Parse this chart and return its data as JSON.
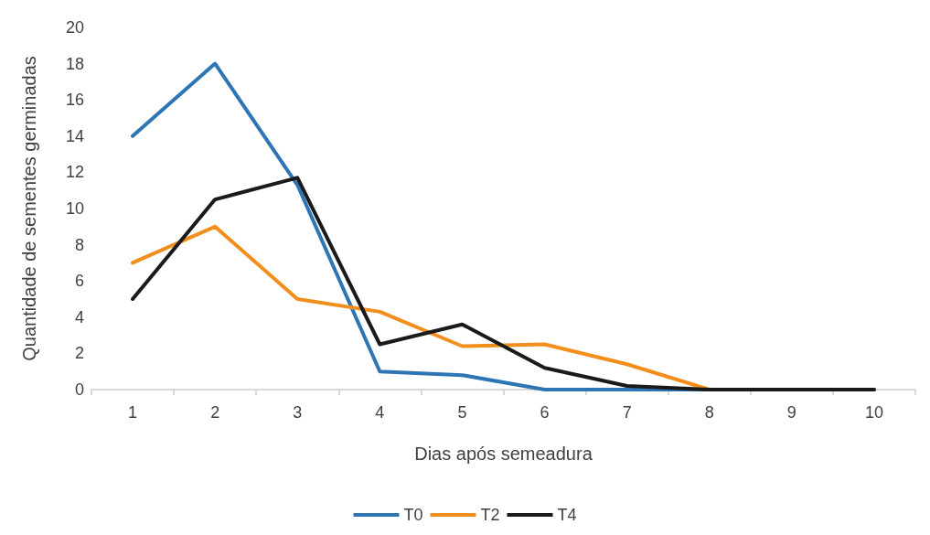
{
  "chart_data": {
    "type": "line",
    "xlabel": "Dias após semeadura",
    "ylabel": "Quantidade de sementes germinadas",
    "categories": [
      "1",
      "2",
      "3",
      "4",
      "5",
      "6",
      "7",
      "8",
      "9",
      "10"
    ],
    "series": [
      {
        "name": "T0",
        "color": "#2e75b6",
        "values": [
          14,
          18,
          11.3,
          1,
          0.8,
          0,
          0,
          0,
          0,
          0
        ]
      },
      {
        "name": "T2",
        "color": "#f28e1c",
        "values": [
          7,
          9,
          5,
          4.3,
          2.4,
          2.5,
          1.4,
          0,
          0,
          0
        ]
      },
      {
        "name": "T4",
        "color": "#1a1a1a",
        "values": [
          5,
          10.5,
          11.7,
          2.5,
          3.6,
          1.2,
          0.2,
          0,
          0,
          0
        ]
      }
    ],
    "ylim": [
      0,
      20
    ],
    "yticks": [
      0,
      2,
      4,
      6,
      8,
      10,
      12,
      14,
      16,
      18,
      20
    ],
    "grid": false,
    "legend": "bottom",
    "marker": "none",
    "line_style": "solid"
  }
}
